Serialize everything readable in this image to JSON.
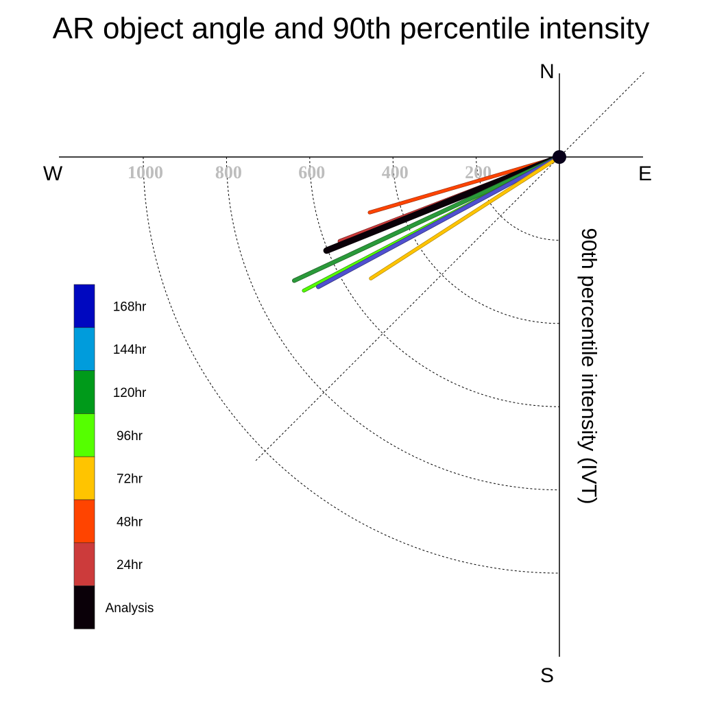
{
  "chart_data": {
    "type": "polar-vector",
    "title": "AR object angle and 90th percentile intensity",
    "axis_label": "90th percentile intensity (IVT)",
    "compass": {
      "north": "N",
      "south": "S",
      "east": "E",
      "west": "W"
    },
    "radial_ticks": [
      {
        "value": 200,
        "label": "200"
      },
      {
        "value": 400,
        "label": "400"
      },
      {
        "value": 600,
        "label": "600"
      },
      {
        "value": 800,
        "label": "800"
      },
      {
        "value": 1000,
        "label": "1000"
      }
    ],
    "radial_max": 1200,
    "grid": true,
    "legend_placement": "bottom-left",
    "legend": [
      {
        "label": "168hr",
        "color": "#0008c0"
      },
      {
        "label": "144hr",
        "color": "#009cdc"
      },
      {
        "label": "120hr",
        "color": "#009a1a"
      },
      {
        "label": "96hr",
        "color": "#55ff00"
      },
      {
        "label": "72hr",
        "color": "#ffc400"
      },
      {
        "label": "48hr",
        "color": "#ff4400"
      },
      {
        "label": "24hr",
        "color": "#cc3b3b"
      },
      {
        "label": "Analysis",
        "color": "#0a0008"
      }
    ],
    "series": [
      {
        "label": "48hr",
        "color": "#ff4400",
        "edge": "#a03010",
        "angle_below_west_deg": 16.3,
        "intensity": 475,
        "width": 4
      },
      {
        "label": "24hr",
        "color": "#cc3b3b",
        "edge": "#7a2020",
        "angle_below_west_deg": 21.0,
        "intensity": 565,
        "width": 5
      },
      {
        "label": "Analysis",
        "color": "#0a0008",
        "edge": "#0a0008",
        "angle_below_west_deg": 21.9,
        "intensity": 603,
        "width": 8
      },
      {
        "label": "120hr",
        "color": "#2a9a3a",
        "edge": "#1f5f25",
        "angle_below_west_deg": 25.0,
        "intensity": 703,
        "width": 5
      },
      {
        "label": "96hr",
        "color": "#55ff00",
        "edge": "#2f8a10",
        "angle_below_west_deg": 27.6,
        "intensity": 693,
        "width": 4
      },
      {
        "label": "168hr",
        "color": "#5050d0",
        "edge": "#30307a",
        "angle_below_west_deg": 28.3,
        "intensity": 658,
        "width": 5
      },
      {
        "label": "72hr",
        "color": "#ffc400",
        "edge": "#b08a10",
        "angle_below_west_deg": 32.8,
        "intensity": 539,
        "width": 4
      }
    ]
  }
}
